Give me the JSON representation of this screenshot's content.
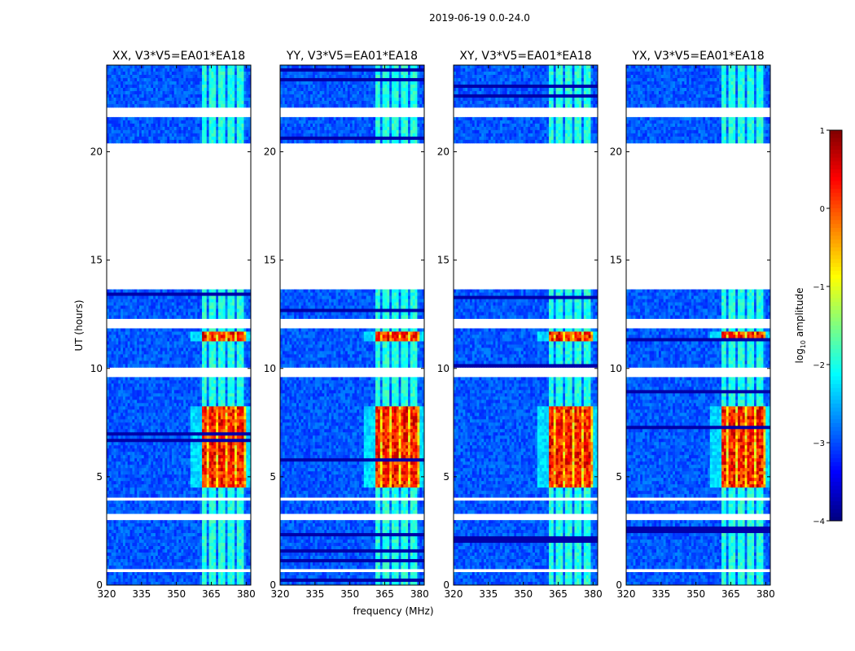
{
  "chart_data": {
    "type": "heatmap",
    "suptitle": "2019-06-19 0.0-24.0",
    "xlabel": "frequency (MHz)",
    "ylabel": "UT (hours)",
    "xlim": [
      320,
      382
    ],
    "ylim": [
      0,
      24
    ],
    "xticks": [
      320,
      335,
      350,
      365,
      380
    ],
    "yticks": [
      0,
      5,
      10,
      15,
      20
    ],
    "grid": false,
    "panels": [
      {
        "title": "XX, V3*V5=EA01*EA18",
        "polarization": "XX"
      },
      {
        "title": "YY, V3*V5=EA01*EA18",
        "polarization": "YY"
      },
      {
        "title": "XY, V3*V5=EA01*EA18",
        "polarization": "XY"
      },
      {
        "title": "YX, V3*V5=EA01*EA18",
        "polarization": "YX"
      }
    ],
    "colorbar": {
      "label_prefix": "log",
      "label_sub": "10",
      "label_suffix": " amplitude",
      "colormap": "jet",
      "range": [
        -4,
        1
      ],
      "ticks": [
        1,
        0,
        -1,
        -2,
        -3,
        -4
      ],
      "tick_labels": [
        "1",
        "0",
        "−1",
        "−2",
        "−3",
        "−4"
      ]
    },
    "flagged_ut_ranges": [
      [
        13.6,
        20.4
      ],
      [
        21.6,
        22.1
      ],
      [
        11.8,
        12.3
      ],
      [
        9.6,
        10.0
      ],
      [
        3.05,
        3.3
      ],
      [
        3.9,
        4.1
      ],
      [
        0.55,
        0.72
      ]
    ],
    "bright_band_mhz": [
      361,
      380
    ],
    "strong_ut_ranges": [
      [
        4.5,
        8.3
      ],
      [
        11.2,
        11.7
      ]
    ]
  }
}
